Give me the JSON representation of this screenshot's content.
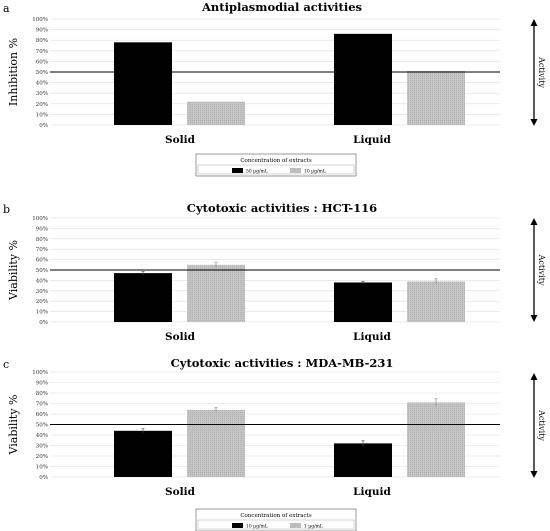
{
  "colors": {
    "dark_series": "#000000",
    "light_series": "#bdbdbd",
    "grid": "#dedede",
    "threshold": "#000000"
  },
  "chart_data": [
    {
      "type": "bar",
      "panel_letter": "a",
      "title": "Antiplasmodial activities",
      "ylabel": "Inhibition %",
      "side_label": "Activity",
      "categories": [
        "Solid",
        "Liquid"
      ],
      "ylim": [
        0,
        100
      ],
      "yticks": [
        "0%",
        "10%",
        "20%",
        "30%",
        "40%",
        "50%",
        "60%",
        "70%",
        "80%",
        "90%",
        "100%"
      ],
      "threshold": 50,
      "grid": true,
      "series": [
        {
          "name": "50 µg/mL",
          "values": [
            78,
            86
          ],
          "errors": [
            0,
            0
          ]
        },
        {
          "name": "10 µg/mL",
          "values": [
            22,
            51
          ],
          "errors": [
            0,
            0
          ]
        }
      ],
      "legend": {
        "title": "Concentration of extracts",
        "placement": "bottom-center"
      }
    },
    {
      "type": "bar",
      "panel_letter": "b",
      "title": "Cytotoxic activities : HCT-116",
      "ylabel": "Viability %",
      "side_label": "Activity",
      "categories": [
        "Solid",
        "Liquid"
      ],
      "ylim": [
        0,
        100
      ],
      "yticks": [
        "0%",
        "10%",
        "20%",
        "30%",
        "40%",
        "50%",
        "60%",
        "70%",
        "80%",
        "90%",
        "100%"
      ],
      "threshold": 50,
      "grid": true,
      "series": [
        {
          "values": [
            47,
            38
          ],
          "errors": [
            1.5,
            1
          ]
        },
        {
          "values": [
            55,
            39
          ],
          "errors": [
            2.5,
            2.5
          ]
        }
      ]
    },
    {
      "type": "bar",
      "panel_letter": "c",
      "title": "Cytotoxic activities : MDA-MB-231",
      "ylabel": "Viability %",
      "side_label": "Activity",
      "categories": [
        "Solid",
        "Liquid"
      ],
      "ylim": [
        0,
        100
      ],
      "yticks": [
        "0%",
        "10%",
        "20%",
        "30%",
        "40%",
        "50%",
        "60%",
        "70%",
        "80%",
        "90%",
        "100%"
      ],
      "threshold": 50,
      "grid": true,
      "series": [
        {
          "name": "10 µg/mL",
          "values": [
            44,
            32
          ],
          "errors": [
            2,
            2.5
          ]
        },
        {
          "name": "1 µg/mL",
          "values": [
            64,
            71
          ],
          "errors": [
            2,
            3.5
          ]
        }
      ],
      "legend": {
        "title": "Concentration of extracts",
        "placement": "bottom-center"
      }
    }
  ]
}
